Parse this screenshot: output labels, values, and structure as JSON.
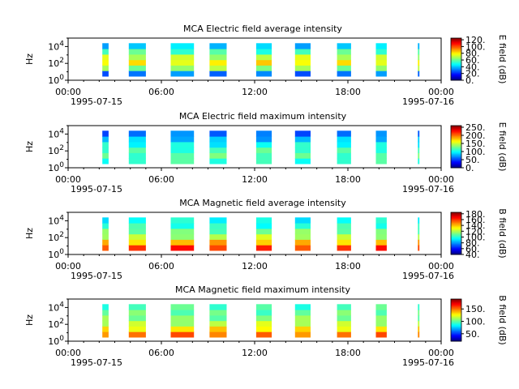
{
  "chart_data": [
    {
      "type": "heatmap",
      "title": "MCA  Electric field average intensity",
      "ylabel": "Hz",
      "y_ticks": [
        "10^0",
        "10^2",
        "10^4"
      ],
      "y_scale": "log",
      "ylim": [
        1,
        100000
      ],
      "x_ticks": [
        "00:00",
        "06:00",
        "12:00",
        "18:00",
        "00:00"
      ],
      "x_dates": [
        "1995-07-15",
        "1995-07-16"
      ],
      "xlim_hours": [
        0,
        24
      ],
      "colorbar": {
        "label": "E field (dB)",
        "ticks": [
          0,
          20,
          40,
          60,
          80,
          100,
          120
        ],
        "tick_labels": [
          "0.",
          "20.",
          "40.",
          "60.",
          "80.",
          "100.",
          "120."
        ],
        "range": [
          0,
          125
        ]
      },
      "segments_hours": [
        [
          2.2,
          2.6
        ],
        [
          3.9,
          5.0
        ],
        [
          6.6,
          8.1
        ],
        [
          9.1,
          10.2
        ],
        [
          12.1,
          13.1
        ],
        [
          14.6,
          15.6
        ],
        [
          17.3,
          18.2
        ],
        [
          19.8,
          20.5
        ],
        [
          22.5,
          22.6
        ]
      ],
      "band_values_db": [
        30,
        65,
        80,
        70,
        55,
        40
      ]
    },
    {
      "type": "heatmap",
      "title": "MCA  Electric field maximum intensity",
      "ylabel": "Hz",
      "y_ticks": [
        "10^0",
        "10^2",
        "10^4"
      ],
      "y_scale": "log",
      "ylim": [
        1,
        100000
      ],
      "x_ticks": [
        "00:00",
        "06:00",
        "12:00",
        "18:00",
        "00:00"
      ],
      "x_dates": [
        "1995-07-15",
        "1995-07-16"
      ],
      "xlim_hours": [
        0,
        24
      ],
      "colorbar": {
        "label": "E field (dB)",
        "ticks": [
          0,
          50,
          100,
          150,
          200,
          250
        ],
        "tick_labels": [
          "0.",
          "50.",
          "100.",
          "150.",
          "200.",
          "250."
        ],
        "range": [
          0,
          260
        ]
      },
      "segments_hours": [
        [
          2.2,
          2.6
        ],
        [
          3.9,
          5.0
        ],
        [
          6.6,
          8.1
        ],
        [
          9.1,
          10.2
        ],
        [
          12.1,
          13.1
        ],
        [
          14.6,
          15.6
        ],
        [
          17.3,
          18.2
        ],
        [
          19.8,
          20.5
        ],
        [
          22.5,
          22.6
        ]
      ],
      "band_values_db": [
        110,
        120,
        115,
        100,
        80,
        60
      ]
    },
    {
      "type": "heatmap",
      "title": "MCA  Magnetic field average intensity",
      "ylabel": "Hz",
      "y_ticks": [
        "10^0",
        "10^2",
        "10^4"
      ],
      "y_scale": "log",
      "ylim": [
        1,
        100000
      ],
      "x_ticks": [
        "00:00",
        "06:00",
        "12:00",
        "18:00",
        "00:00"
      ],
      "x_dates": [
        "1995-07-15",
        "1995-07-16"
      ],
      "xlim_hours": [
        0,
        24
      ],
      "colorbar": {
        "label": "B field (dB)",
        "ticks": [
          40,
          60,
          80,
          100,
          120,
          140,
          160,
          180
        ],
        "tick_labels": [
          "40.",
          "60.",
          "80.",
          "100.",
          "120.",
          "140.",
          "160.",
          "180."
        ],
        "range": [
          40,
          185
        ]
      },
      "segments_hours": [
        [
          2.2,
          2.6
        ],
        [
          3.9,
          5.0
        ],
        [
          6.6,
          8.1
        ],
        [
          9.1,
          10.2
        ],
        [
          12.1,
          13.1
        ],
        [
          14.6,
          15.6
        ],
        [
          17.3,
          18.2
        ],
        [
          19.8,
          20.5
        ],
        [
          22.5,
          22.6
        ]
      ],
      "band_values_db": [
        160,
        140,
        120,
        110,
        100,
        95
      ]
    },
    {
      "type": "heatmap",
      "title": "MCA  Magnetic field maximum intensity",
      "ylabel": "Hz",
      "y_ticks": [
        "10^0",
        "10^2",
        "10^4"
      ],
      "y_scale": "log",
      "ylim": [
        1,
        100000
      ],
      "x_ticks": [
        "00:00",
        "06:00",
        "12:00",
        "18:00",
        "00:00"
      ],
      "x_dates": [
        "1995-07-15",
        "1995-07-16"
      ],
      "xlim_hours": [
        0,
        24
      ],
      "colorbar": {
        "label": "B field (dB)",
        "ticks": [
          50,
          100,
          150
        ],
        "tick_labels": [
          "50.",
          "100.",
          "150."
        ],
        "range": [
          20,
          190
        ]
      },
      "segments_hours": [
        [
          2.2,
          2.6
        ],
        [
          3.9,
          5.0
        ],
        [
          6.6,
          8.1
        ],
        [
          9.1,
          10.2
        ],
        [
          12.1,
          13.1
        ],
        [
          14.6,
          15.6
        ],
        [
          17.3,
          18.2
        ],
        [
          19.8,
          20.5
        ],
        [
          22.5,
          22.6
        ]
      ],
      "band_values_db": [
        150,
        130,
        115,
        105,
        100,
        95
      ]
    }
  ]
}
